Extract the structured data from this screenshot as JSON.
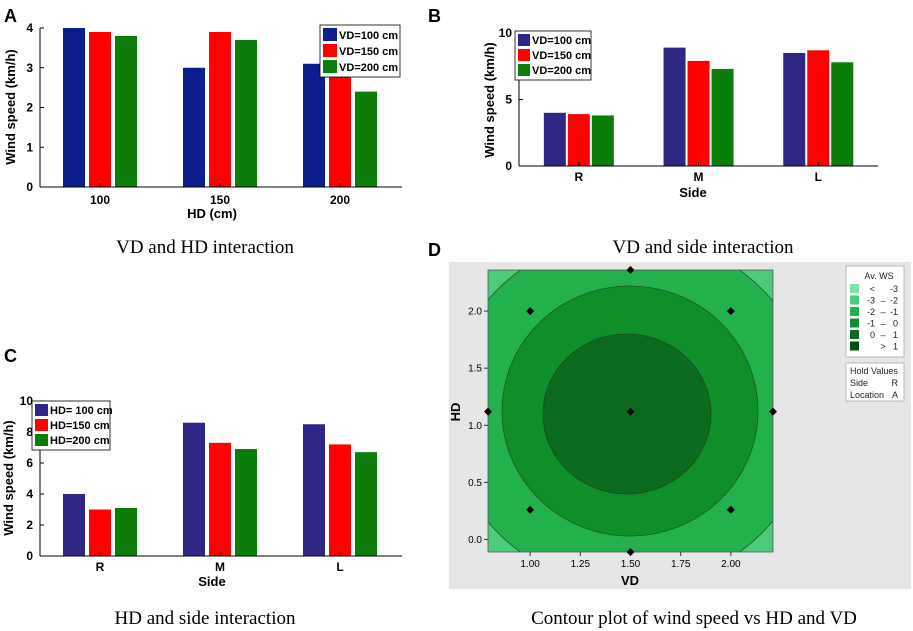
{
  "figure": {
    "captions": {
      "A": "VD and HD interaction",
      "B": "VD and side interaction",
      "C": "HD and side interaction",
      "D": "Contour plot of wind speed vs HD and VD"
    }
  },
  "chart_data": [
    {
      "id": "A",
      "panel_label": "A",
      "type": "bar",
      "categories": [
        "100",
        "150",
        "200"
      ],
      "series": [
        {
          "name": "VD=100 cm",
          "color": "#0a1e8c",
          "values": [
            4.0,
            3.0,
            3.1
          ]
        },
        {
          "name": "VD=150 cm",
          "color": "#ff0000",
          "values": [
            3.9,
            3.9,
            2.9
          ]
        },
        {
          "name": "VD=200 cm",
          "color": "#0a7d0a",
          "values": [
            3.8,
            3.7,
            2.4
          ]
        }
      ],
      "xlabel": "HD (cm)",
      "ylabel": "Wind speed (km/h)",
      "ylim": [
        0,
        4
      ],
      "yticks": [
        0,
        1,
        2,
        3,
        4
      ],
      "legend_position": "top-right"
    },
    {
      "id": "B",
      "panel_label": "B",
      "type": "bar",
      "categories": [
        "R",
        "M",
        "L"
      ],
      "series": [
        {
          "name": "VD=100 cm",
          "color": "#2e2785",
          "values": [
            4.0,
            8.9,
            8.5
          ]
        },
        {
          "name": "VD=150 cm",
          "color": "#ff0000",
          "values": [
            3.9,
            7.9,
            8.7
          ]
        },
        {
          "name": "VD=200 cm",
          "color": "#0a7d0a",
          "values": [
            3.8,
            7.3,
            7.8
          ]
        }
      ],
      "xlabel": "Side",
      "ylabel": "Wind speed (km/h)",
      "ylim": [
        0,
        10
      ],
      "yticks": [
        0,
        5,
        10
      ],
      "legend_position": "top-left"
    },
    {
      "id": "C",
      "panel_label": "C",
      "type": "bar",
      "categories": [
        "R",
        "M",
        "L"
      ],
      "series": [
        {
          "name": "HD= 100 cm",
          "color": "#2e2785",
          "values": [
            4.0,
            8.6,
            8.5
          ]
        },
        {
          "name": "HD=150 cm",
          "color": "#ff0000",
          "values": [
            3.0,
            7.3,
            7.2
          ]
        },
        {
          "name": "HD=200 cm",
          "color": "#0a7d0a",
          "values": [
            3.1,
            6.9,
            6.7
          ]
        }
      ],
      "xlabel": "Side",
      "ylabel": "Wind speed (km/h)",
      "ylim": [
        0,
        10
      ],
      "yticks": [
        0,
        2,
        4,
        6,
        8,
        10
      ],
      "legend_position": "top-left"
    },
    {
      "id": "D",
      "panel_label": "D",
      "type": "contour",
      "xlabel": "VD",
      "ylabel": "HD",
      "xlim": [
        0.79,
        2.21
      ],
      "ylim": [
        -0.11,
        2.36
      ],
      "xticks": [
        "1.00",
        "1.25",
        "1.50",
        "1.75",
        "2.00"
      ],
      "yticks": [
        "0.0",
        "0.5",
        "1.0",
        "1.5",
        "2.0"
      ],
      "design_points": [
        {
          "x": 1.5,
          "y": 2.36
        },
        {
          "x": 1.0,
          "y": 2.0
        },
        {
          "x": 2.0,
          "y": 2.0
        },
        {
          "x": 0.79,
          "y": 1.12
        },
        {
          "x": 1.5,
          "y": 1.12
        },
        {
          "x": 2.21,
          "y": 1.12
        },
        {
          "x": 1.0,
          "y": 0.26
        },
        {
          "x": 2.0,
          "y": 0.26
        },
        {
          "x": 1.5,
          "y": -0.11
        }
      ],
      "legend": {
        "title": "Av. WS",
        "levels": [
          {
            "a": "<",
            "b": "",
            "c": "-3",
            "color": "#7fe0a8"
          },
          {
            "a": "-3",
            "b": "–",
            "c": "-2",
            "color": "#4ccb7a"
          },
          {
            "a": "-2",
            "b": "–",
            "c": "-1",
            "color": "#22b14c"
          },
          {
            "a": "-1",
            "b": "–",
            "c": "0",
            "color": "#0f8f2a"
          },
          {
            "a": "0",
            "b": "–",
            "c": "1",
            "color": "#0b6b1e"
          },
          {
            "a": "",
            "b": ">",
            "c": "1",
            "color": "#074d13"
          }
        ],
        "hold_title": "Hold Values",
        "hold_values": [
          {
            "name": "Side",
            "value": "R"
          },
          {
            "name": "Location",
            "value": "A"
          }
        ]
      }
    }
  ]
}
